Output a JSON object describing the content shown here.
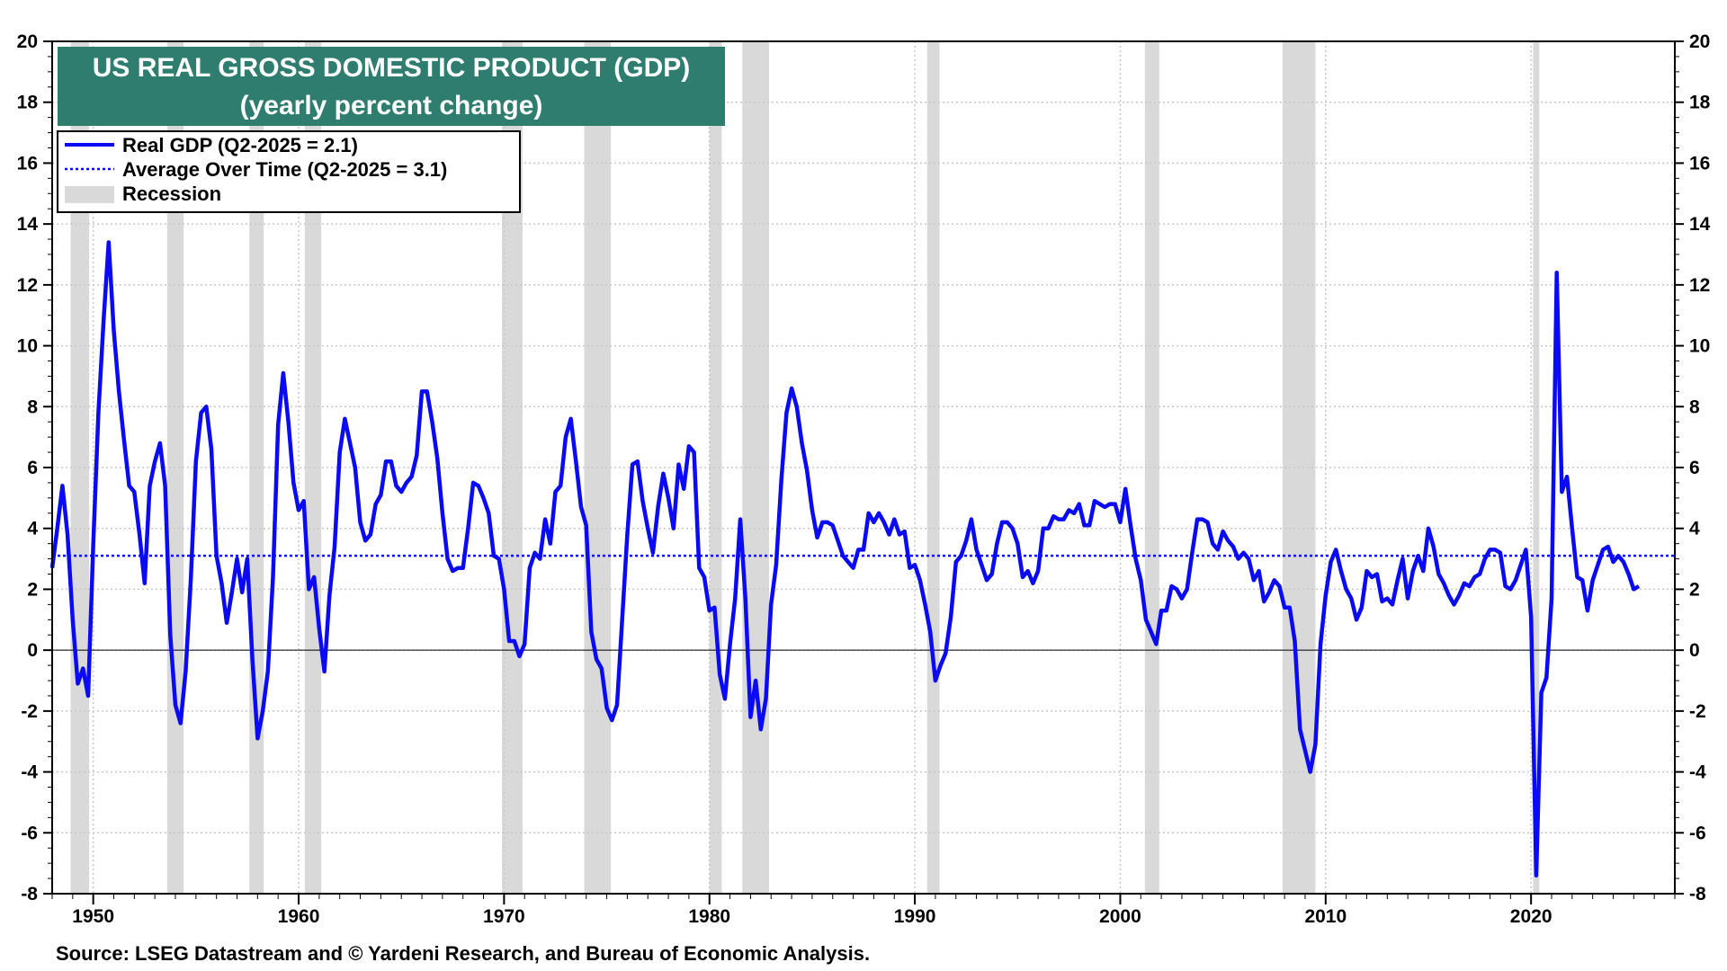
{
  "chart_data": {
    "type": "line",
    "title": "US REAL GROSS DOMESTIC PRODUCT (GDP)",
    "subtitle": "(yearly percent change)",
    "source": "Source: LSEG Datastream and © Yardeni Research, and Bureau of Economic Analysis.",
    "xlim": [
      1948.0,
      2027.0
    ],
    "ylim": [
      -8,
      20
    ],
    "x_ticks": [
      1950,
      1960,
      1970,
      1980,
      1990,
      2000,
      2010,
      2020
    ],
    "y_ticks": [
      -8,
      -6,
      -4,
      -2,
      0,
      2,
      4,
      6,
      8,
      10,
      12,
      14,
      16,
      18,
      20
    ],
    "grid": true,
    "legend_position": "top-left",
    "legend": {
      "real_gdp": "Real GDP  (Q2-2025 = 2.1)",
      "average": "Average Over Time  (Q2-2025 = 3.1)",
      "recession": "Recession"
    },
    "colors": {
      "series": "#0a0af5",
      "average": "#0a0af5",
      "recession": "#d9d9d9",
      "title_bg": "#2e7d6e",
      "title_fg": "#ffffff",
      "zero_line": "#000000",
      "grid": "#c8c8c8"
    },
    "average_value": 3.1,
    "recessions": [
      [
        1948.9,
        1949.8
      ],
      [
        1953.6,
        1954.4
      ],
      [
        1957.6,
        1958.3
      ],
      [
        1960.3,
        1961.1
      ],
      [
        1969.9,
        1970.9
      ],
      [
        1973.9,
        1975.2
      ],
      [
        1980.0,
        1980.6
      ],
      [
        1981.6,
        1982.9
      ],
      [
        1990.6,
        1991.2
      ],
      [
        2001.2,
        2001.9
      ],
      [
        2007.9,
        2009.5
      ],
      [
        2020.1,
        2020.4
      ]
    ],
    "series": [
      {
        "name": "Real GDP",
        "x": [
          1948.0,
          1948.25,
          1948.5,
          1948.75,
          1949.0,
          1949.25,
          1949.5,
          1949.75,
          1950.0,
          1950.25,
          1950.5,
          1950.75,
          1951.0,
          1951.25,
          1951.5,
          1951.75,
          1952.0,
          1952.25,
          1952.5,
          1952.75,
          1953.0,
          1953.25,
          1953.5,
          1953.75,
          1954.0,
          1954.25,
          1954.5,
          1954.75,
          1955.0,
          1955.25,
          1955.5,
          1955.75,
          1956.0,
          1956.25,
          1956.5,
          1956.75,
          1957.0,
          1957.25,
          1957.5,
          1957.75,
          1958.0,
          1958.25,
          1958.5,
          1958.75,
          1959.0,
          1959.25,
          1959.5,
          1959.75,
          1960.0,
          1960.25,
          1960.5,
          1960.75,
          1961.0,
          1961.25,
          1961.5,
          1961.75,
          1962.0,
          1962.25,
          1962.5,
          1962.75,
          1963.0,
          1963.25,
          1963.5,
          1963.75,
          1964.0,
          1964.25,
          1964.5,
          1964.75,
          1965.0,
          1965.25,
          1965.5,
          1965.75,
          1966.0,
          1966.25,
          1966.5,
          1966.75,
          1967.0,
          1967.25,
          1967.5,
          1967.75,
          1968.0,
          1968.25,
          1968.5,
          1968.75,
          1969.0,
          1969.25,
          1969.5,
          1969.75,
          1970.0,
          1970.25,
          1970.5,
          1970.75,
          1971.0,
          1971.25,
          1971.5,
          1971.75,
          1972.0,
          1972.25,
          1972.5,
          1972.75,
          1973.0,
          1973.25,
          1973.5,
          1973.75,
          1974.0,
          1974.25,
          1974.5,
          1974.75,
          1975.0,
          1975.25,
          1975.5,
          1975.75,
          1976.0,
          1976.25,
          1976.5,
          1976.75,
          1977.0,
          1977.25,
          1977.5,
          1977.75,
          1978.0,
          1978.25,
          1978.5,
          1978.75,
          1979.0,
          1979.25,
          1979.5,
          1979.75,
          1980.0,
          1980.25,
          1980.5,
          1980.75,
          1981.0,
          1981.25,
          1981.5,
          1981.75,
          1982.0,
          1982.25,
          1982.5,
          1982.75,
          1983.0,
          1983.25,
          1983.5,
          1983.75,
          1984.0,
          1984.25,
          1984.5,
          1984.75,
          1985.0,
          1985.25,
          1985.5,
          1985.75,
          1986.0,
          1986.25,
          1986.5,
          1986.75,
          1987.0,
          1987.25,
          1987.5,
          1987.75,
          1988.0,
          1988.25,
          1988.5,
          1988.75,
          1989.0,
          1989.25,
          1989.5,
          1989.75,
          1990.0,
          1990.25,
          1990.5,
          1990.75,
          1991.0,
          1991.25,
          1991.5,
          1991.75,
          1992.0,
          1992.25,
          1992.5,
          1992.75,
          1993.0,
          1993.25,
          1993.5,
          1993.75,
          1994.0,
          1994.25,
          1994.5,
          1994.75,
          1995.0,
          1995.25,
          1995.5,
          1995.75,
          1996.0,
          1996.25,
          1996.5,
          1996.75,
          1997.0,
          1997.25,
          1997.5,
          1997.75,
          1998.0,
          1998.25,
          1998.5,
          1998.75,
          1999.0,
          1999.25,
          1999.5,
          1999.75,
          2000.0,
          2000.25,
          2000.5,
          2000.75,
          2001.0,
          2001.25,
          2001.5,
          2001.75,
          2002.0,
          2002.25,
          2002.5,
          2002.75,
          2003.0,
          2003.25,
          2003.5,
          2003.75,
          2004.0,
          2004.25,
          2004.5,
          2004.75,
          2005.0,
          2005.25,
          2005.5,
          2005.75,
          2006.0,
          2006.25,
          2006.5,
          2006.75,
          2007.0,
          2007.25,
          2007.5,
          2007.75,
          2008.0,
          2008.25,
          2008.5,
          2008.75,
          2009.0,
          2009.25,
          2009.5,
          2009.75,
          2010.0,
          2010.25,
          2010.5,
          2010.75,
          2011.0,
          2011.25,
          2011.5,
          2011.75,
          2012.0,
          2012.25,
          2012.5,
          2012.75,
          2013.0,
          2013.25,
          2013.5,
          2013.75,
          2014.0,
          2014.25,
          2014.5,
          2014.75,
          2015.0,
          2015.25,
          2015.5,
          2015.75,
          2016.0,
          2016.25,
          2016.5,
          2016.75,
          2017.0,
          2017.25,
          2017.5,
          2017.75,
          2018.0,
          2018.25,
          2018.5,
          2018.75,
          2019.0,
          2019.25,
          2019.5,
          2019.75,
          2020.0,
          2020.25,
          2020.5,
          2020.75,
          2021.0,
          2021.25,
          2021.5,
          2021.75,
          2022.0,
          2022.25,
          2022.5,
          2022.75,
          2023.0,
          2023.25,
          2023.5,
          2023.75,
          2024.0,
          2024.25,
          2024.5,
          2024.75,
          2025.0,
          2025.25
        ],
        "values": [
          2.7,
          4.0,
          5.4,
          3.8,
          1.0,
          -1.1,
          -0.6,
          -1.5,
          3.5,
          7.8,
          10.8,
          13.4,
          10.5,
          8.5,
          6.9,
          5.4,
          5.2,
          3.8,
          2.2,
          5.4,
          6.2,
          6.8,
          5.4,
          0.5,
          -1.8,
          -2.4,
          -0.7,
          2.3,
          6.2,
          7.8,
          8.0,
          6.6,
          3.1,
          2.2,
          0.9,
          1.9,
          3.0,
          1.9,
          3.0,
          -0.3,
          -2.9,
          -2.0,
          -0.7,
          2.4,
          7.4,
          9.1,
          7.5,
          5.5,
          4.6,
          4.9,
          2.0,
          2.4,
          0.7,
          -0.7,
          1.8,
          3.4,
          6.5,
          7.6,
          6.8,
          6.0,
          4.2,
          3.6,
          3.8,
          4.8,
          5.1,
          6.2,
          6.2,
          5.4,
          5.2,
          5.5,
          5.7,
          6.4,
          8.5,
          8.5,
          7.5,
          6.3,
          4.5,
          3.0,
          2.6,
          2.7,
          2.7,
          4.0,
          5.5,
          5.4,
          5.0,
          4.5,
          3.1,
          3.0,
          2.0,
          0.3,
          0.3,
          -0.2,
          0.2,
          2.7,
          3.2,
          3.0,
          4.3,
          3.5,
          5.2,
          5.4,
          7.0,
          7.6,
          6.2,
          4.7,
          4.1,
          0.6,
          -0.3,
          -0.6,
          -1.9,
          -2.3,
          -1.8,
          1.0,
          3.8,
          6.1,
          6.2,
          4.9,
          4.0,
          3.2,
          4.7,
          5.8,
          5.0,
          4.0,
          6.1,
          5.3,
          6.7,
          6.5,
          2.7,
          2.4,
          1.3,
          1.4,
          -0.8,
          -1.6,
          0.2,
          1.7,
          4.3,
          1.7,
          -2.2,
          -1.0,
          -2.6,
          -1.6,
          1.5,
          2.8,
          5.6,
          7.8,
          8.6,
          8.0,
          6.8,
          5.9,
          4.6,
          3.7,
          4.2,
          4.2,
          4.1,
          3.6,
          3.1,
          2.9,
          2.7,
          3.3,
          3.3,
          4.5,
          4.2,
          4.5,
          4.2,
          3.8,
          4.3,
          3.8,
          3.9,
          2.7,
          2.8,
          2.3,
          1.5,
          0.6,
          -1.0,
          -0.5,
          -0.1,
          1.1,
          2.9,
          3.1,
          3.6,
          4.3,
          3.3,
          2.8,
          2.3,
          2.5,
          3.5,
          4.2,
          4.2,
          4.0,
          3.5,
          2.4,
          2.6,
          2.2,
          2.6,
          4.0,
          4.0,
          4.4,
          4.3,
          4.3,
          4.6,
          4.5,
          4.8,
          4.1,
          4.1,
          4.9,
          4.8,
          4.7,
          4.8,
          4.8,
          4.2,
          5.3,
          4.1,
          3.0,
          2.3,
          1.0,
          0.6,
          0.2,
          1.3,
          1.3,
          2.1,
          2.0,
          1.7,
          2.0,
          3.2,
          4.3,
          4.3,
          4.2,
          3.5,
          3.3,
          3.9,
          3.6,
          3.4,
          3.0,
          3.2,
          3.0,
          2.3,
          2.6,
          1.6,
          1.9,
          2.3,
          2.1,
          1.4,
          1.4,
          0.3,
          -2.6,
          -3.3,
          -4.0,
          -3.1,
          0.2,
          1.8,
          2.9,
          3.3,
          2.6,
          2.0,
          1.7,
          1.0,
          1.4,
          2.6,
          2.4,
          2.5,
          1.6,
          1.7,
          1.5,
          2.3,
          3.0,
          1.7,
          2.6,
          3.1,
          2.6,
          4.0,
          3.4,
          2.5,
          2.2,
          1.8,
          1.5,
          1.8,
          2.2,
          2.1,
          2.4,
          2.5,
          3.0,
          3.3,
          3.3,
          3.2,
          2.1,
          2.0,
          2.3,
          2.8,
          3.3,
          1.1,
          -7.4,
          -1.4,
          -0.9,
          1.7,
          12.4,
          5.2,
          5.7,
          4.0,
          2.4,
          2.3,
          1.3,
          2.3,
          2.8,
          3.3,
          3.4,
          2.9,
          3.1,
          2.9,
          2.5,
          2.0,
          2.1
        ]
      }
    ]
  }
}
